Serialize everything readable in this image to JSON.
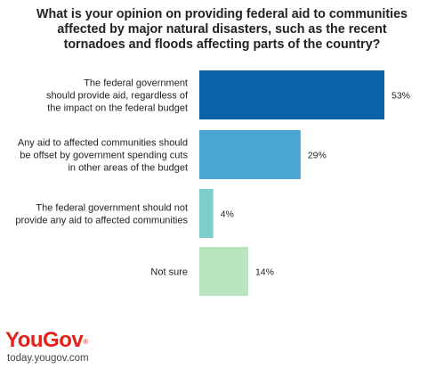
{
  "title_lines": [
    "What is your opinion on providing federal aid to communities",
    "affected by major natural disasters, such as the recent",
    "tornadoes and floods affecting parts of the country?"
  ],
  "branding": {
    "logo": "YouGov",
    "trademark": "®",
    "site": "today.yougov.com"
  },
  "chart_data": {
    "type": "bar",
    "orientation": "horizontal",
    "title": "What is your opinion on providing federal aid to communities affected by major natural disasters, such as the recent tornadoes and floods affecting parts of the country?",
    "categories": [
      [
        "The federal government",
        "should provide aid, regardless of",
        "the impact on the federal budget"
      ],
      [
        "Any aid to affected communities should",
        "be offset by government spending cuts",
        "in other areas of the budget"
      ],
      [
        "The federal government should not",
        "provide any aid to affected communities"
      ],
      [
        "Not sure"
      ]
    ],
    "values": [
      53,
      29,
      4,
      14
    ],
    "value_labels": [
      "53%",
      "29%",
      "4%",
      "14%"
    ],
    "colors": [
      "#0b63a8",
      "#4aa5d3",
      "#7ccfcb",
      "#b9e4c0"
    ],
    "xlim": [
      0,
      53
    ],
    "grid": false,
    "legend": "none"
  }
}
